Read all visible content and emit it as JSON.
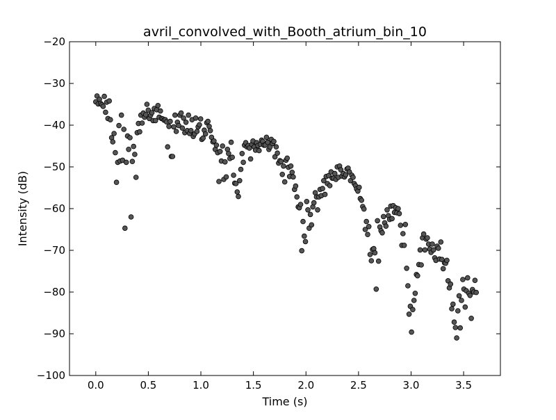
{
  "chart_data": {
    "type": "scatter",
    "title": "avril_convolved_with_Booth_atrium_bin_10",
    "xlabel": "Time (s)",
    "ylabel": "Intensity (dB)",
    "xlim": [
      -0.25,
      3.85
    ],
    "ylim": [
      -100,
      -20
    ],
    "xticks": [
      0.0,
      0.5,
      1.0,
      1.5,
      2.0,
      2.5,
      3.0,
      3.5
    ],
    "xtick_labels": [
      "0.0",
      "0.5",
      "1.0",
      "1.5",
      "2.0",
      "2.5",
      "3.0",
      "3.5"
    ],
    "yticks": [
      -100,
      -90,
      -80,
      -70,
      -60,
      -50,
      -40,
      -30,
      -20
    ],
    "ytick_labels": [
      "−100",
      "−90",
      "−80",
      "−70",
      "−60",
      "−50",
      "−40",
      "−30",
      "−20"
    ],
    "grid": false,
    "marker_color": "#555555",
    "x": [
      0.0,
      0.012,
      0.023,
      0.035,
      0.046,
      0.058,
      0.07,
      0.081,
      0.093,
      0.104,
      0.116,
      0.128,
      0.139,
      0.151,
      0.162,
      0.174,
      0.186,
      0.197,
      0.209,
      0.22,
      0.232,
      0.244,
      0.255,
      0.267,
      0.278,
      0.29,
      0.302,
      0.313,
      0.325,
      0.336,
      0.348,
      0.36,
      0.371,
      0.383,
      0.394,
      0.406,
      0.418,
      0.429,
      0.441,
      0.452,
      0.464,
      0.476,
      0.487,
      0.499,
      0.51,
      0.522,
      0.534,
      0.545,
      0.557,
      0.568,
      0.58,
      0.592,
      0.603,
      0.615,
      0.626,
      0.638,
      0.65,
      0.661,
      0.673,
      0.684,
      0.696,
      0.708,
      0.719,
      0.731,
      0.742,
      0.754,
      0.766,
      0.777,
      0.789,
      0.8,
      0.812,
      0.824,
      0.835,
      0.847,
      0.858,
      0.87,
      0.882,
      0.893,
      0.905,
      0.916,
      0.928,
      0.94,
      0.951,
      0.963,
      0.974,
      0.986,
      0.998,
      1.009,
      1.021,
      1.032,
      1.044,
      1.056,
      1.067,
      1.079,
      1.09,
      1.102,
      1.114,
      1.125,
      1.137,
      1.148,
      1.16,
      1.172,
      1.183,
      1.195,
      1.206,
      1.218,
      1.23,
      1.241,
      1.253,
      1.264,
      1.276,
      1.288,
      1.299,
      1.311,
      1.322,
      1.334,
      1.346,
      1.357,
      1.369,
      1.38,
      1.392,
      1.404,
      1.415,
      1.427,
      1.438,
      1.45,
      1.462,
      1.473,
      1.485,
      1.496,
      1.508,
      1.52,
      1.531,
      1.543,
      1.554,
      1.566,
      1.578,
      1.589,
      1.601,
      1.612,
      1.624,
      1.636,
      1.647,
      1.659,
      1.67,
      1.682,
      1.694,
      1.705,
      1.717,
      1.728,
      1.74,
      1.752,
      1.763,
      1.775,
      1.786,
      1.798,
      1.81,
      1.821,
      1.833,
      1.844,
      1.856,
      1.868,
      1.879,
      1.891,
      1.902,
      1.914,
      1.926,
      1.937,
      1.949,
      1.96,
      1.972,
      1.984,
      1.995,
      2.007,
      2.018,
      2.03,
      2.042,
      2.053,
      2.065,
      2.076,
      2.088,
      2.1,
      2.111,
      2.123,
      2.134,
      2.146,
      2.158,
      2.169,
      2.181,
      2.192,
      2.204,
      2.216,
      2.227,
      2.239,
      2.25,
      2.262,
      2.274,
      2.285,
      2.297,
      2.308,
      2.32,
      2.332,
      2.343,
      2.355,
      2.366,
      2.378,
      2.39,
      2.401,
      2.413,
      2.424,
      2.436,
      2.448,
      2.459,
      2.471,
      2.482,
      2.494,
      2.506,
      2.517,
      2.529,
      2.54,
      2.552,
      2.564,
      2.575,
      2.587,
      2.598,
      2.61,
      2.622,
      2.633,
      2.645,
      2.656,
      2.668,
      2.68,
      2.691,
      2.703,
      2.714,
      2.726,
      2.738,
      2.749,
      2.761,
      2.772,
      2.784,
      2.796,
      2.807,
      2.819,
      2.83,
      2.842,
      2.854,
      2.865,
      2.877,
      2.888,
      2.9,
      2.912,
      2.923,
      2.935,
      2.946,
      2.958,
      2.97,
      2.981,
      2.993,
      3.004,
      3.016,
      3.028,
      3.039,
      3.051,
      3.062,
      3.074,
      3.086,
      3.097,
      3.109,
      3.12,
      3.132,
      3.144,
      3.155,
      3.167,
      3.178,
      3.19,
      3.202,
      3.213,
      3.225,
      3.236,
      3.248,
      3.26,
      3.271,
      3.283,
      3.294,
      3.306,
      3.318,
      3.329,
      3.341,
      3.352,
      3.364,
      3.376,
      3.387,
      3.399,
      3.41,
      3.422,
      3.434,
      3.445,
      3.457,
      3.468,
      3.48,
      3.492,
      3.503,
      3.515,
      3.526,
      3.538,
      3.55,
      3.561,
      3.573,
      3.584,
      3.596,
      3.608,
      3.62
    ],
    "y": [
      -34.4,
      -33.0,
      -34.9,
      -33.8,
      -34.8,
      -35.1,
      -35.5,
      -33.1,
      -36.9,
      -34.5,
      -38.4,
      -34.2,
      -38.7,
      -43.0,
      -44.0,
      -42.0,
      -46.6,
      -53.7,
      -48.9,
      -40.1,
      -48.6,
      -37.6,
      -48.4,
      -41.0,
      -64.7,
      -48.9,
      -42.6,
      -45.8,
      -43.0,
      -62.0,
      -48.7,
      -45.1,
      -47.0,
      -52.5,
      -41.8,
      -39.6,
      -41.6,
      -37.6,
      -39.5,
      -37.1,
      -38.1,
      -37.5,
      -35.0,
      -36.4,
      -38.4,
      -37.6,
      -37.0,
      -38.9,
      -36.0,
      -38.9,
      -36.3,
      -35.3,
      -38.1,
      -36.6,
      -38.4,
      -38.5,
      -38.8,
      -38.7,
      -39.2,
      -45.2,
      -40.3,
      -39.1,
      -47.5,
      -47.5,
      -40.4,
      -37.6,
      -41.5,
      -39.3,
      -40.1,
      -37.6,
      -37.1,
      -40.7,
      -38.3,
      -41.8,
      -39.3,
      -41.3,
      -37.6,
      -42.0,
      -41.3,
      -38.7,
      -42.7,
      -42.1,
      -38.3,
      -41.5,
      -40.4,
      -39.9,
      -38.5,
      -43.4,
      -43.1,
      -41.2,
      -42.1,
      -39.4,
      -39.1,
      -40.3,
      -41.3,
      -42.9,
      -44.0,
      -43.8,
      -45.8,
      -44.8,
      -46.6,
      -53.5,
      -46.3,
      -48.6,
      -45.0,
      -53.0,
      -48.8,
      -52.4,
      -45.8,
      -46.8,
      -48.0,
      -44.1,
      -47.7,
      -52.0,
      -53.9,
      -54.0,
      -56.0,
      -57.1,
      -53.3,
      -50.6,
      -46.8,
      -48.9,
      -44.8,
      -44.2,
      -45.2,
      -44.9,
      -45.5,
      -48.1,
      -44.6,
      -43.8,
      -45.2,
      -46.0,
      -44.2,
      -44.9,
      -46.1,
      -44.6,
      -43.6,
      -43.9,
      -44.8,
      -44.8,
      -42.9,
      -44.1,
      -45.8,
      -45.2,
      -43.4,
      -44.4,
      -43.9,
      -47.6,
      -45.2,
      -46.7,
      -49.1,
      -48.5,
      -48.7,
      -51.8,
      -49.8,
      -53.6,
      -48.4,
      -47.9,
      -50.1,
      -52.3,
      -49.8,
      -51.3,
      -52.4,
      -55.4,
      -54.6,
      -57.2,
      -59.6,
      -59.8,
      -59.0,
      -70.1,
      -63.1,
      -66.6,
      -67.9,
      -58.3,
      -60.3,
      -64.7,
      -61.4,
      -63.9,
      -59.6,
      -58.6,
      -56.2,
      -57.2,
      -60.3,
      -57.2,
      -55.4,
      -56.9,
      -55.2,
      -53.3,
      -56.6,
      -52.3,
      -54.0,
      -52.1,
      -54.5,
      -51.2,
      -52.7,
      -52.7,
      -51.6,
      -53.0,
      -50.0,
      -52.5,
      -49.8,
      -50.7,
      -52.2,
      -51.6,
      -52.4,
      -51.9,
      -50.5,
      -50.3,
      -51.2,
      -53.3,
      -52.0,
      -52.5,
      -54.0,
      -54.5,
      -55.3,
      -55.8,
      -54.9,
      -57.6,
      -58.0,
      -59.5,
      -60.1,
      -65.0,
      -63.1,
      -66.2,
      -64.3,
      -71.0,
      -72.5,
      -69.8,
      -69.6,
      -70.6,
      -79.3,
      -62.9,
      -72.6,
      -64.4,
      -65.3,
      -65.8,
      -61.9,
      -63.4,
      -64.2,
      -60.3,
      -61.7,
      -62.6,
      -59.4,
      -62.4,
      -59.3,
      -60.9,
      -59.8,
      -61.0,
      -60.0,
      -61.2,
      -64.0,
      -68.8,
      -66.0,
      -68.8,
      -63.8,
      -74.3,
      -78.5,
      -85.3,
      -83.4,
      -89.6,
      -84.2,
      -82.0,
      -80.3,
      -75.8,
      -76.1,
      -73.4,
      -69.9,
      -73.5,
      -67.0,
      -66.1,
      -69.9,
      -67.3,
      -67.0,
      -68.5,
      -69.7,
      -70.5,
      -68.5,
      -69.9,
      -71.8,
      -72.4,
      -69.0,
      -69.5,
      -72.1,
      -68.0,
      -72.2,
      -74.4,
      -73.0,
      -73.1,
      -72.4,
      -77.3,
      -79.0,
      -78.1,
      -84.0,
      -82.9,
      -87.2,
      -88.5,
      -91.0,
      -84.5,
      -80.9,
      -88.6,
      -82.0,
      -77.0,
      -79.3,
      -83.6,
      -79.7,
      -76.6,
      -80.3,
      -80.8,
      -86.3,
      -79.4,
      -80.0,
      -77.2,
      -80.1
    ]
  }
}
